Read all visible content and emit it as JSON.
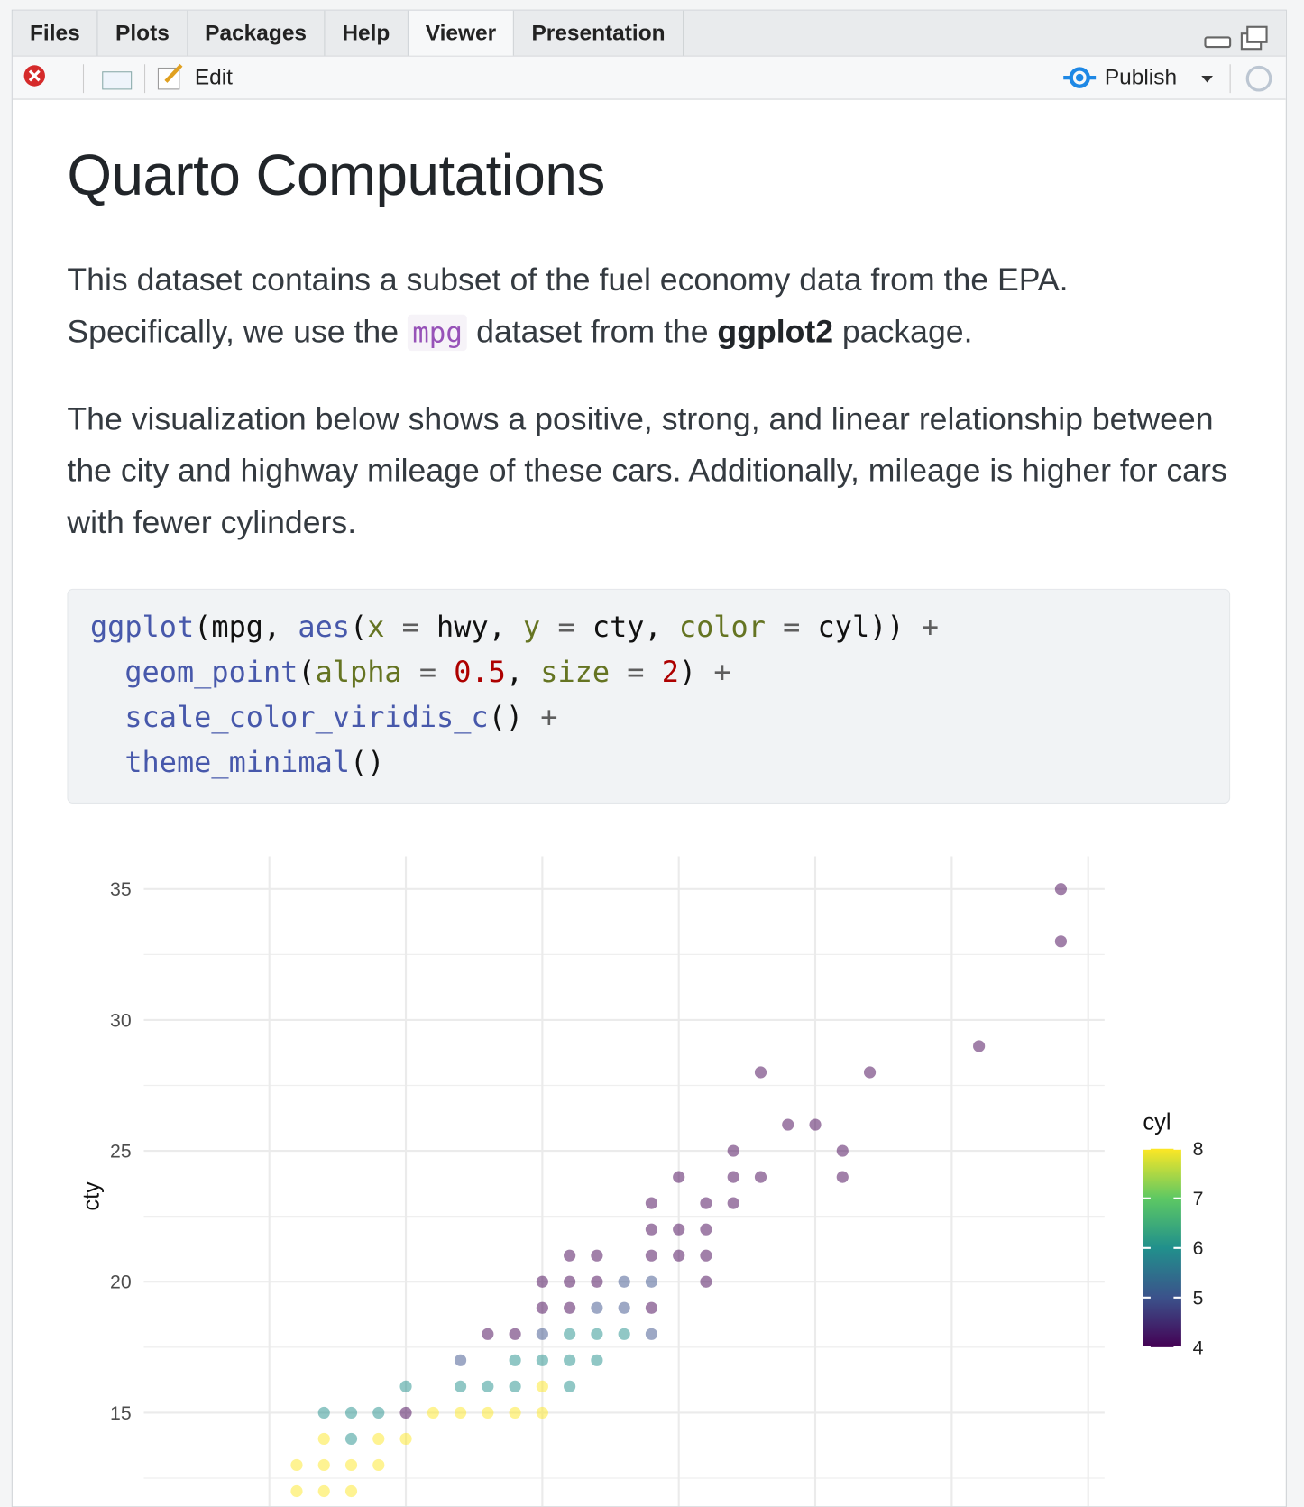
{
  "tabs": [
    "Files",
    "Plots",
    "Packages",
    "Help",
    "Viewer",
    "Presentation"
  ],
  "active_tab": 4,
  "toolbar": {
    "edit": "Edit",
    "publish": "Publish"
  },
  "document": {
    "title": "Quarto Computations",
    "paragraphs": [
      [
        {
          "text": "This dataset contains a subset of the fuel economy data from the EPA. Specifically, we use the "
        },
        {
          "text": "mpg",
          "style": "code"
        },
        {
          "text": " dataset from the "
        },
        {
          "text": "ggplot2",
          "style": "bold"
        },
        {
          "text": " package."
        }
      ],
      [
        {
          "text": "The visualization below shows a positive, strong, and linear relationship between the city and highway mileage of these cars. Additionally, mileage is higher for cars with fewer cylinders."
        }
      ]
    ],
    "code": [
      [
        {
          "text": "ggplot",
          "style": "function"
        },
        {
          "text": "(mpg, "
        },
        {
          "text": "aes",
          "style": "function"
        },
        {
          "text": "("
        },
        {
          "text": "x",
          "style": "argument"
        },
        {
          "text": " = ",
          "style": "operator"
        },
        {
          "text": "hwy, "
        },
        {
          "text": "y",
          "style": "argument"
        },
        {
          "text": " = ",
          "style": "operator"
        },
        {
          "text": "cty, "
        },
        {
          "text": "color",
          "style": "argument"
        },
        {
          "text": " = ",
          "style": "operator"
        },
        {
          "text": "cyl)) "
        },
        {
          "text": "+",
          "style": "operator"
        }
      ],
      [
        {
          "text": "  "
        },
        {
          "text": "geom_point",
          "style": "function"
        },
        {
          "text": "("
        },
        {
          "text": "alpha",
          "style": "argument"
        },
        {
          "text": " = ",
          "style": "operator"
        },
        {
          "text": "0.5",
          "style": "number"
        },
        {
          "text": ", "
        },
        {
          "text": "size",
          "style": "argument"
        },
        {
          "text": " = ",
          "style": "operator"
        },
        {
          "text": "2",
          "style": "number"
        },
        {
          "text": ") "
        },
        {
          "text": "+",
          "style": "operator"
        }
      ],
      [
        {
          "text": "  "
        },
        {
          "text": "scale_color_viridis_c",
          "style": "function"
        },
        {
          "text": "() "
        },
        {
          "text": "+",
          "style": "operator"
        }
      ],
      [
        {
          "text": "  "
        },
        {
          "text": "theme_minimal",
          "style": "function"
        },
        {
          "text": "()"
        }
      ]
    ]
  },
  "chart_data": {
    "type": "scatter",
    "y_label": "cty",
    "xlim": [
      10.4,
      45.6
    ],
    "ylim": [
      8.6,
      36.25
    ],
    "yticks": [
      15,
      20,
      25,
      30,
      35
    ],
    "xgrid": [
      15,
      20,
      25,
      30,
      35,
      40,
      45
    ],
    "ygrid_minor": [
      12.5,
      17.5,
      22.5,
      27.5,
      32.5
    ],
    "alpha": 0.5,
    "series": [
      {
        "name": "cyl",
        "x": [
          44,
          44,
          41,
          33,
          37,
          34,
          35,
          32,
          36,
          30,
          32,
          33,
          36,
          29,
          31,
          32,
          29,
          30,
          31,
          26,
          27,
          29,
          30,
          31,
          25,
          26,
          27,
          28,
          29,
          31,
          25,
          26,
          27,
          28,
          29,
          23,
          24,
          25,
          26,
          27,
          28,
          29,
          22,
          24,
          25,
          26,
          27,
          20,
          22,
          23,
          24,
          25,
          26,
          17,
          18,
          19,
          20,
          21,
          22,
          23,
          24,
          25,
          17,
          18,
          19,
          20,
          16,
          17,
          18,
          19,
          16,
          17,
          18
        ],
        "values": [
          35,
          33,
          29,
          28,
          28,
          26,
          26,
          25,
          25,
          24,
          24,
          24,
          24,
          23,
          23,
          23,
          22,
          22,
          22,
          21,
          21,
          21,
          21,
          21,
          20,
          20,
          20,
          20,
          20,
          20,
          19,
          19,
          19,
          19,
          19,
          18,
          18,
          18,
          18,
          18,
          18,
          18,
          17,
          17,
          17,
          17,
          17,
          16,
          16,
          16,
          16,
          16,
          16,
          15,
          15,
          15,
          15,
          15,
          15,
          15,
          15,
          15,
          14,
          14,
          14,
          14,
          13,
          13,
          13,
          13,
          12,
          12,
          12
        ],
        "colors": [
          4,
          4,
          4,
          4,
          4,
          4,
          4,
          4,
          4,
          4,
          4,
          4,
          4,
          4,
          4,
          4,
          4,
          4,
          4,
          4,
          4,
          4,
          4,
          4,
          4,
          4,
          4,
          5,
          5,
          4,
          4,
          4,
          5,
          5,
          4,
          4,
          4,
          5,
          6,
          6,
          6,
          5,
          5,
          6,
          6,
          6,
          6,
          6,
          6,
          6,
          6,
          8,
          6,
          6,
          6,
          6,
          4,
          8,
          8,
          8,
          8,
          8,
          8,
          6,
          8,
          8,
          8,
          8,
          8,
          8,
          8,
          8,
          8
        ]
      }
    ],
    "colorbar": {
      "title": "cyl",
      "lim": [
        4,
        8
      ],
      "ticks": [
        4,
        5,
        6,
        7,
        8
      ],
      "colors": [
        "#440154",
        "#3b528b",
        "#21908c",
        "#5dc863",
        "#fde725"
      ]
    }
  }
}
